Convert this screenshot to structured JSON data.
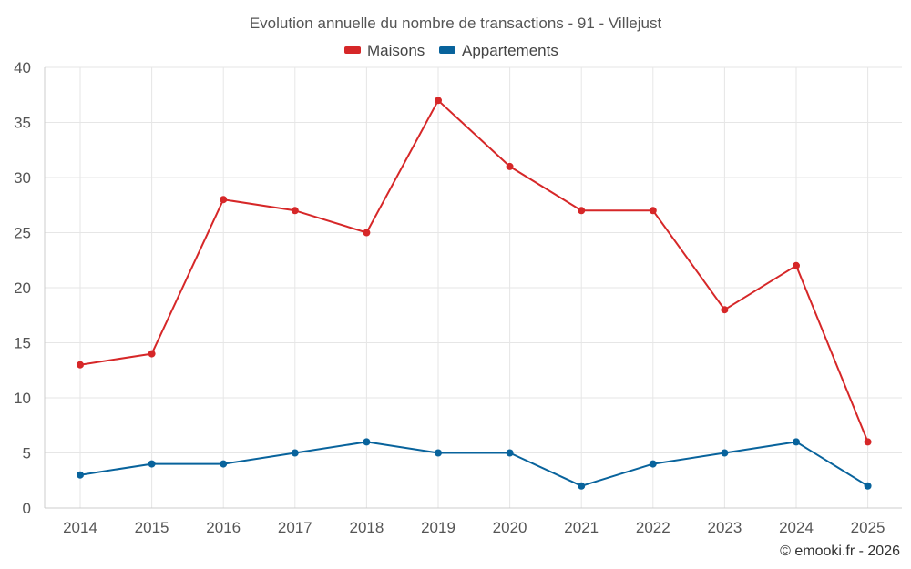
{
  "chart_data": {
    "type": "line",
    "title": "Evolution annuelle du nombre de transactions - 91 - Villejust",
    "categories": [
      "2014",
      "2015",
      "2016",
      "2017",
      "2018",
      "2019",
      "2020",
      "2021",
      "2022",
      "2023",
      "2024",
      "2025"
    ],
    "series": [
      {
        "name": "Maisons",
        "color": "#d62728",
        "values": [
          13,
          14,
          28,
          27,
          25,
          37,
          31,
          27,
          27,
          18,
          22,
          6
        ]
      },
      {
        "name": "Appartements",
        "color": "#08639c",
        "values": [
          3,
          4,
          4,
          5,
          6,
          5,
          5,
          2,
          4,
          5,
          6,
          2
        ]
      }
    ],
    "ylim": [
      0,
      40
    ],
    "yticks": [
      0,
      5,
      10,
      15,
      20,
      25,
      30,
      35,
      40
    ],
    "grid": true,
    "legend_position": "top-center",
    "xlabel": "",
    "ylabel": ""
  },
  "credit": "© emooki.fr - 2026"
}
